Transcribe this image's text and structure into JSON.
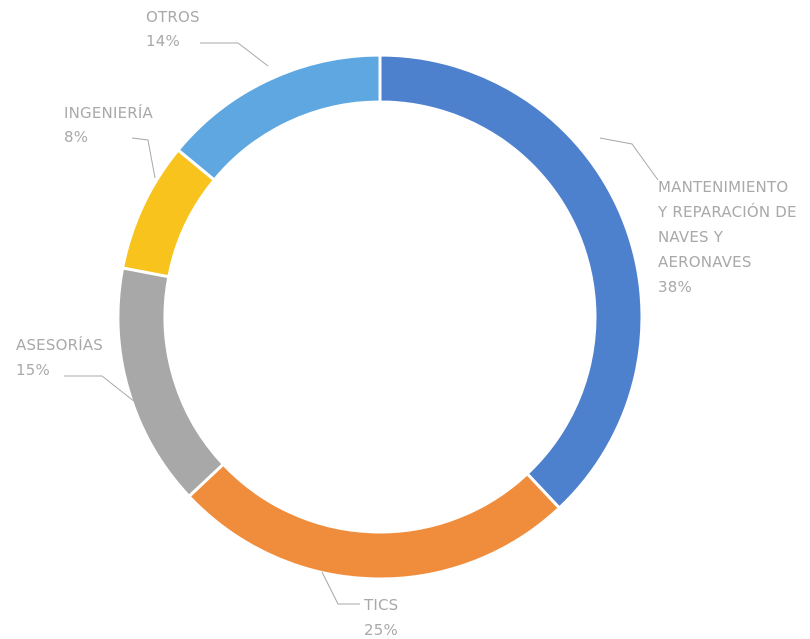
{
  "chart_data": {
    "type": "pie",
    "variant": "donut",
    "legend": "none",
    "slices": [
      {
        "label": [
          "MANTENIMIENTO",
          "Y REPARACIÓN DE",
          "NAVES Y",
          "AERONAVES"
        ],
        "value": 38,
        "value_label": "38%",
        "color": "#4e81cd"
      },
      {
        "label": [
          "TICS"
        ],
        "value": 25,
        "value_label": "25%",
        "color": "#f08d3d"
      },
      {
        "label": [
          "ASESORÍAS"
        ],
        "value": 15,
        "value_label": "15%",
        "color": "#a8a8a8"
      },
      {
        "label": [
          "INGENIERÍA"
        ],
        "value": 8,
        "value_label": "8%",
        "color": "#f7c31c"
      },
      {
        "label": [
          "OTROS"
        ],
        "value": 14,
        "value_label": "14%",
        "color": "#5ea7e0"
      }
    ]
  }
}
